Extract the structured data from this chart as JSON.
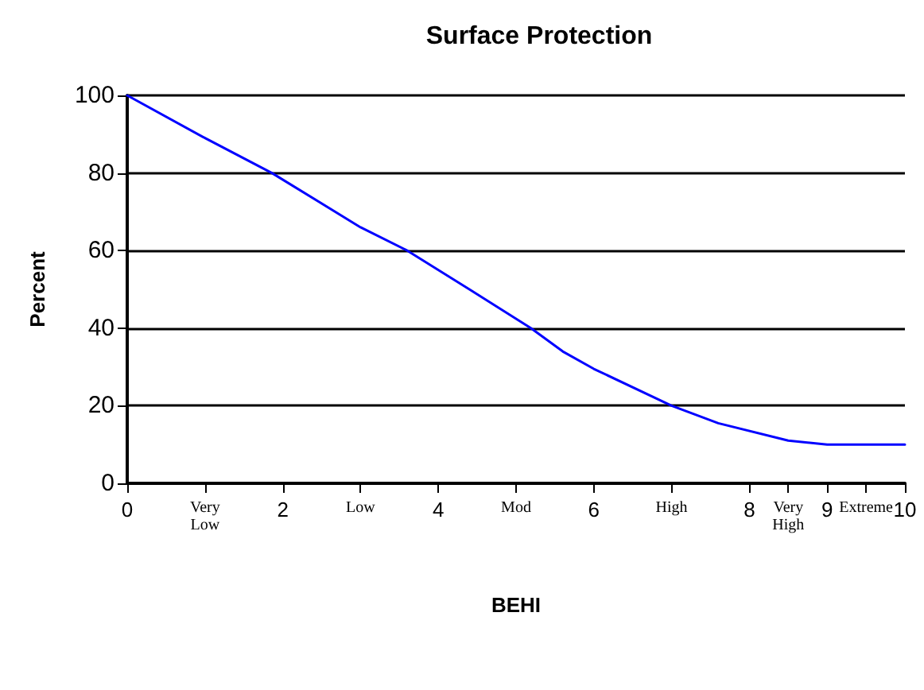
{
  "chart_data": {
    "type": "line",
    "title": "Surface Protection",
    "xlabel": "BEHI",
    "ylabel": "Percent",
    "x": [
      0,
      1,
      1.86,
      3,
      3.6,
      4.4,
      5.19,
      5.6,
      6,
      7,
      7.6,
      8.5,
      9,
      10
    ],
    "series": [
      {
        "color": "#0000ff",
        "values": [
          100,
          89,
          80,
          66,
          60,
          50,
          40,
          34,
          29.5,
          20,
          15.5,
          11,
          10,
          10
        ]
      }
    ],
    "xlim": [
      0,
      10
    ],
    "xticks": [
      0,
      {
        "value": 1,
        "label": "Very Low"
      },
      2,
      {
        "value": 3,
        "label": "Low"
      },
      4,
      {
        "value": 5,
        "label": "Mod"
      },
      6,
      {
        "value": 7,
        "label": "High"
      },
      8,
      {
        "value": 8.5,
        "label": "Very High"
      },
      9,
      {
        "value": 9.5,
        "label": "Extreme"
      },
      10
    ],
    "ylim": [
      0,
      100
    ],
    "yticks": [
      0,
      20,
      40,
      60,
      80,
      100
    ],
    "grid": "y",
    "marker": "none",
    "line_style": "solid"
  }
}
